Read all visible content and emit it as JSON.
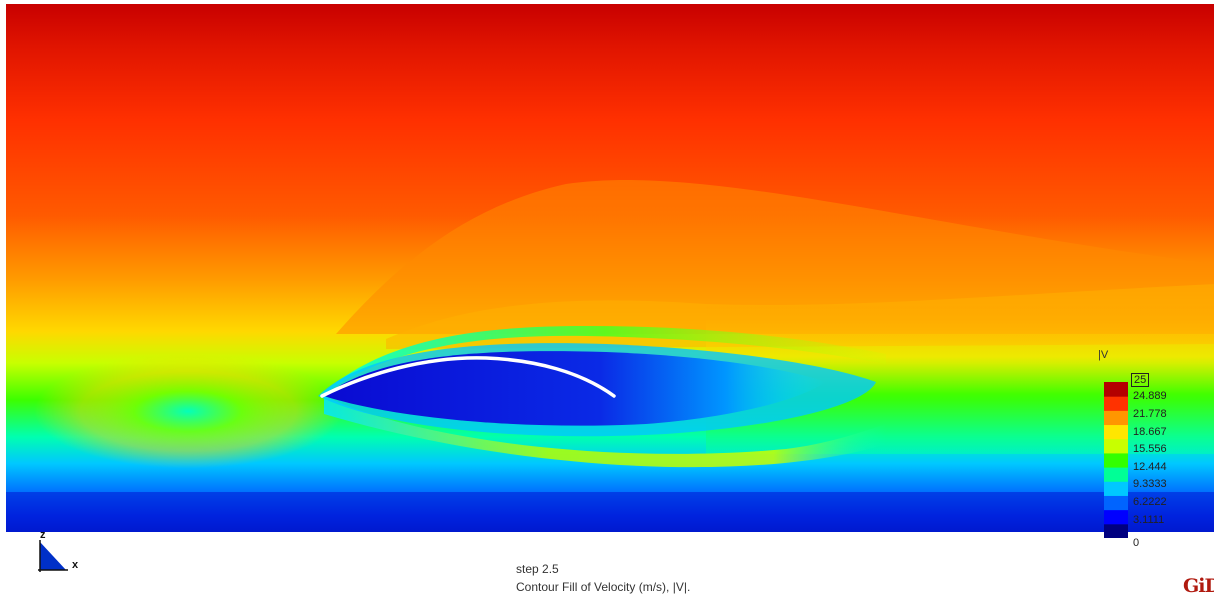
{
  "legend": {
    "title": "|V",
    "labels": [
      "25",
      "24.889",
      "21.778",
      "18.667",
      "15.556",
      "12.444",
      "9.3333",
      "6.2222",
      "3.1111",
      "0"
    ],
    "colors": [
      "#000080",
      "#0000ff",
      "#0064ff",
      "#00c8ff",
      "#00ff96",
      "#32ff00",
      "#c8ff00",
      "#ffe600",
      "#ff9600",
      "#ff3200",
      "#b40000"
    ]
  },
  "footer": {
    "step": "step 2.5",
    "contour": "Contour Fill of Velocity (m/s), |V|."
  },
  "axes": {
    "z": "z",
    "x": "x"
  },
  "logo": "GiD",
  "contour_colors": {
    "top": "#d40a00",
    "upper": "#ff3a00",
    "mid": "#ff9a00",
    "yellow": "#ffe000",
    "green": "#3cff00",
    "cyan": "#00e6ff",
    "blue": "#0064ff",
    "deep": "#0000c8",
    "airfoil": "#ffffff"
  }
}
